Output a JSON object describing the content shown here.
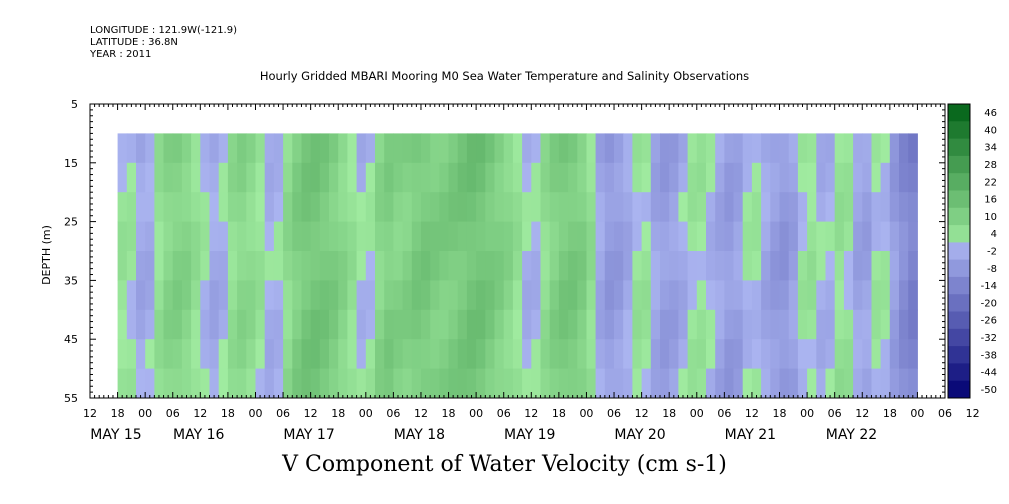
{
  "header": {
    "longitude": "LONGITUDE : 121.9W(-121.9)",
    "latitude": "LATITUDE : 36.8N",
    "year": "YEAR : 2011"
  },
  "chart_data": {
    "type": "heatmap",
    "title": "Hourly Gridded MBARI Mooring M0 Sea Water Temperature and Salinity Observations",
    "xlabel": "V Component of Water Velocity (cm s-1)",
    "ylabel": "DEPTH (m)",
    "y_ticks": [
      "5",
      "15",
      "25",
      "35",
      "45",
      "55"
    ],
    "ylim": [
      5,
      55
    ],
    "y_inverted": true,
    "x_hour_labels": [
      "12",
      "18",
      "00",
      "06",
      "12",
      "18",
      "00",
      "06",
      "12",
      "18",
      "00",
      "06",
      "12",
      "18",
      "00",
      "06",
      "12",
      "18",
      "00",
      "06",
      "12",
      "18",
      "00",
      "06",
      "12",
      "18",
      "00",
      "06",
      "12",
      "18",
      "00",
      "06",
      "12"
    ],
    "x_date_labels": [
      "MAY 15",
      "MAY 16",
      "MAY 17",
      "MAY 18",
      "MAY 19",
      "MAY 20",
      "MAY 21",
      "MAY 22"
    ],
    "data_extent": {
      "time_start": "MAY 15 18:00",
      "time_end": "MAY 22 12:00",
      "depth_top": 10,
      "depth_bottom": 55
    },
    "colorbar_levels": [
      "46",
      "40",
      "34",
      "28",
      "22",
      "16",
      "10",
      "4",
      "-2",
      "-8",
      "-14",
      "-20",
      "-26",
      "-32",
      "-38",
      "-44",
      "-50"
    ],
    "colors": {
      "positive": "#22cc44",
      "negative": "#7a88ee",
      "strong_positive": "#0b6b1e",
      "strong_negative": "#0a0a7a"
    },
    "time_profile": [
      {
        "hour": 0,
        "v": 3
      },
      {
        "hour": 4,
        "v": -2
      },
      {
        "hour": 8,
        "v": 4
      },
      {
        "hour": 12,
        "v": -6
      },
      {
        "hour": 16,
        "v": 7
      },
      {
        "hour": 20,
        "v": 10
      },
      {
        "hour": 24,
        "v": 2
      },
      {
        "hour": 28,
        "v": -5
      },
      {
        "hour": 32,
        "v": 8
      },
      {
        "hour": 36,
        "v": 5
      },
      {
        "hour": 40,
        "v": -4
      },
      {
        "hour": 44,
        "v": 9
      },
      {
        "hour": 48,
        "v": 14
      },
      {
        "hour": 52,
        "v": 12
      },
      {
        "hour": 56,
        "v": 6
      },
      {
        "hour": 60,
        "v": -3
      },
      {
        "hour": 64,
        "v": 11
      },
      {
        "hour": 68,
        "v": 8
      },
      {
        "hour": 72,
        "v": 13
      },
      {
        "hour": 76,
        "v": 10
      },
      {
        "hour": 80,
        "v": 12
      },
      {
        "hour": 84,
        "v": 15
      },
      {
        "hour": 88,
        "v": 11
      },
      {
        "hour": 92,
        "v": 6
      },
      {
        "hour": 96,
        "v": -4
      },
      {
        "hour": 100,
        "v": 8
      },
      {
        "hour": 104,
        "v": 13
      },
      {
        "hour": 108,
        "v": 9
      },
      {
        "hour": 112,
        "v": -8
      },
      {
        "hour": 116,
        "v": -6
      },
      {
        "hour": 120,
        "v": 5
      },
      {
        "hour": 124,
        "v": -7
      },
      {
        "hour": 128,
        "v": -5
      },
      {
        "hour": 132,
        "v": 4
      },
      {
        "hour": 136,
        "v": -3
      },
      {
        "hour": 140,
        "v": -8
      },
      {
        "hour": 144,
        "v": 3
      },
      {
        "hour": 148,
        "v": -6
      },
      {
        "hour": 152,
        "v": -9
      },
      {
        "hour": 156,
        "v": 5
      },
      {
        "hour": 160,
        "v": -4
      },
      {
        "hour": 164,
        "v": 6
      },
      {
        "hour": 168,
        "v": -8
      },
      {
        "hour": 172,
        "v": 4
      },
      {
        "hour": 176,
        "v": -10
      },
      {
        "hour": 180,
        "v": -16
      }
    ]
  }
}
